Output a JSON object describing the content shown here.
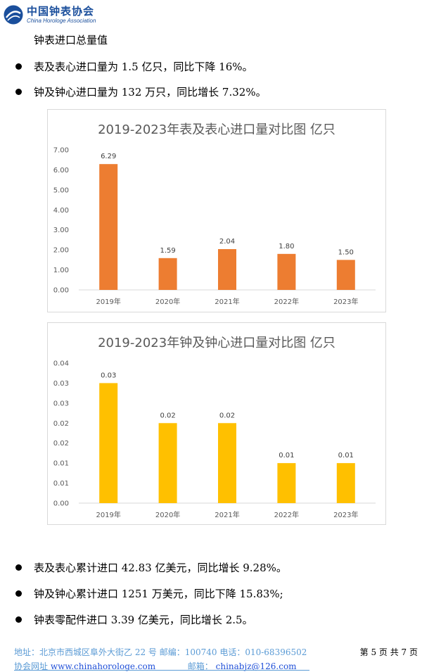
{
  "header": {
    "logo_cn": "中国钟表协会",
    "logo_en": "China Horologe Association",
    "logo_icon": "globe-swirl-icon",
    "brand_color": "#1b4f9c"
  },
  "section_title": "钟表进口总量值",
  "bullets_top": [
    "表及表心进口量为 1.5 亿只，同比下降 16%。",
    "钟及钟心进口量为 132 万只，同比增长 7.32%。"
  ],
  "chart_data": [
    {
      "type": "bar",
      "title": "2019-2023年表及表心进口量对比图 亿只",
      "categories": [
        "2019年",
        "2020年",
        "2021年",
        "2022年",
        "2023年"
      ],
      "values": [
        6.29,
        1.59,
        2.04,
        1.8,
        1.5
      ],
      "data_labels": [
        "6.29",
        "1.59",
        "2.04",
        "1.80",
        "1.50"
      ],
      "y_ticks": [
        "0.00",
        "1.00",
        "2.00",
        "3.00",
        "4.00",
        "5.00",
        "6.00",
        "7.00"
      ],
      "ylim": [
        0,
        7
      ],
      "color": "#ed7d31",
      "grid": false
    },
    {
      "type": "bar",
      "title": "2019-2023年钟及钟心进口量对比图 亿只",
      "categories": [
        "2019年",
        "2020年",
        "2021年",
        "2022年",
        "2023年"
      ],
      "values": [
        0.03,
        0.02,
        0.02,
        0.01,
        0.01
      ],
      "data_labels": [
        "0.03",
        "0.02",
        "0.02",
        "0.01",
        "0.01"
      ],
      "y_ticks": [
        "0.00",
        "0.01",
        "0.01",
        "0.02",
        "0.02",
        "0.03",
        "0.03",
        "0.04"
      ],
      "ylim": [
        0,
        0.035
      ],
      "color": "#ffc000",
      "grid": false
    }
  ],
  "bullets_bottom": [
    "表及表心累计进口 42.83 亿美元，同比增长 9.28%。",
    "钟及钟心累计进口 1251 万美元，同比下降 15.83%;",
    "钟表零配件进口 3.39 亿美元，同比增长 2.5。"
  ],
  "footer": {
    "address": "地址：北京市西城区阜外大街乙 22 号   邮编：100740 电话：010-68396502",
    "website_label": "协会网址",
    "website": "www.chinahorologe.com",
    "email_label": "邮箱：",
    "email": "chinabjz@126.com",
    "page": "第 5 页 共 7 页",
    "footer_color": "#5b9bd5"
  }
}
